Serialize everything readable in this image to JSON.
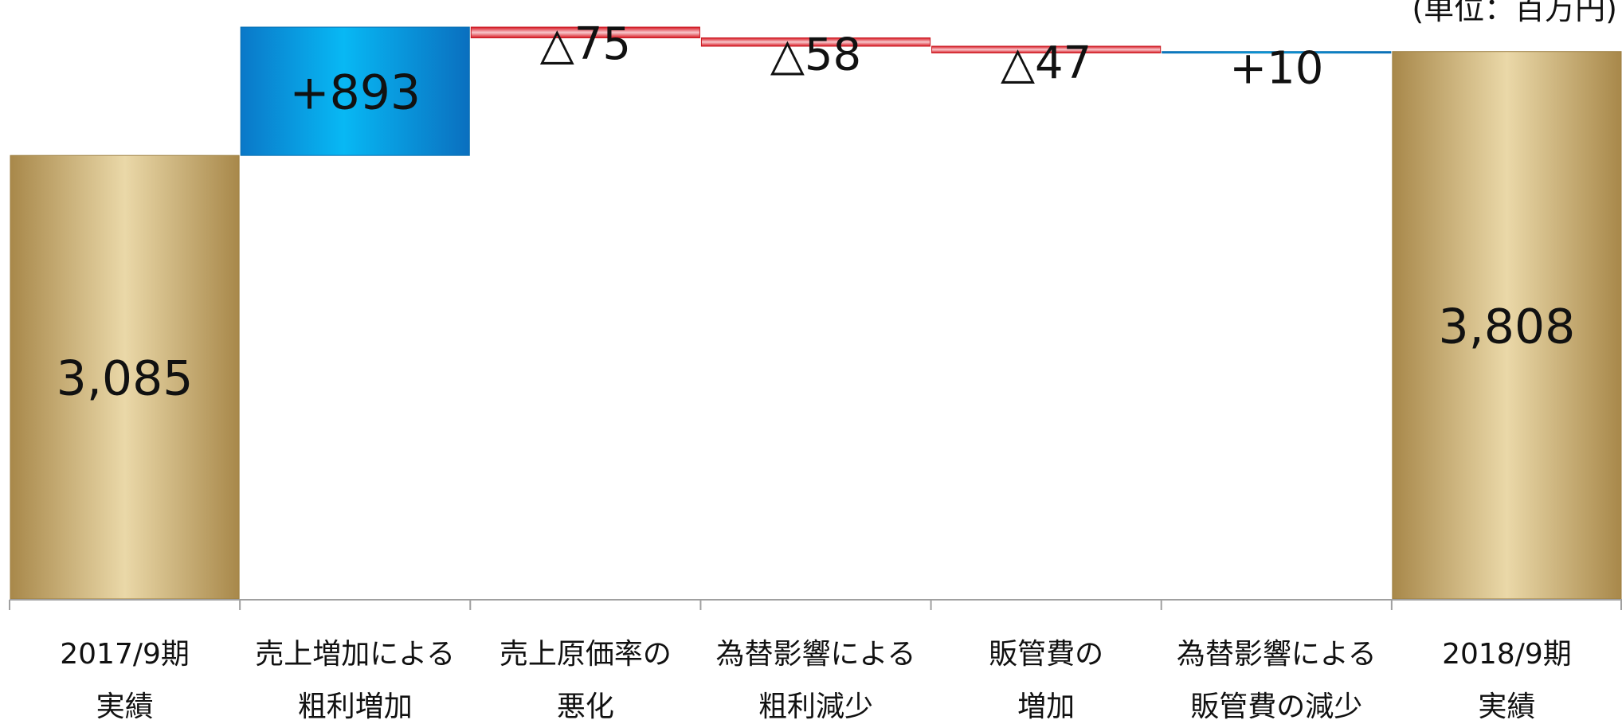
{
  "unit_note": "(単位：百万円)",
  "chart_data": {
    "type": "waterfall",
    "categories": [
      [
        "2017/9期",
        "実績"
      ],
      [
        "売上増加による",
        "粗利増加"
      ],
      [
        "売上原価率の",
        "悪化"
      ],
      [
        "為替影響による",
        "粗利減少"
      ],
      [
        "販管費の",
        "増加"
      ],
      [
        "為替影響による",
        "販管費の減少"
      ],
      [
        "2018/9期",
        "実績"
      ]
    ],
    "steps": [
      {
        "kind": "total",
        "value": 3085,
        "label": "3,085"
      },
      {
        "kind": "increase",
        "value": 893,
        "label": "+893"
      },
      {
        "kind": "decrease",
        "value": -75,
        "label": "△75"
      },
      {
        "kind": "decrease",
        "value": -58,
        "label": "△58"
      },
      {
        "kind": "decrease",
        "value": -47,
        "label": "△47"
      },
      {
        "kind": "increase",
        "value": 10,
        "label": "+10"
      },
      {
        "kind": "total",
        "value": 3808,
        "label": "3,808"
      }
    ],
    "ylim": [
      0,
      4100
    ],
    "colors": {
      "total": "#c9a862",
      "increase": "#0a9ee6",
      "decrease": "#e0202a",
      "axis": "#a0a0a0"
    }
  }
}
